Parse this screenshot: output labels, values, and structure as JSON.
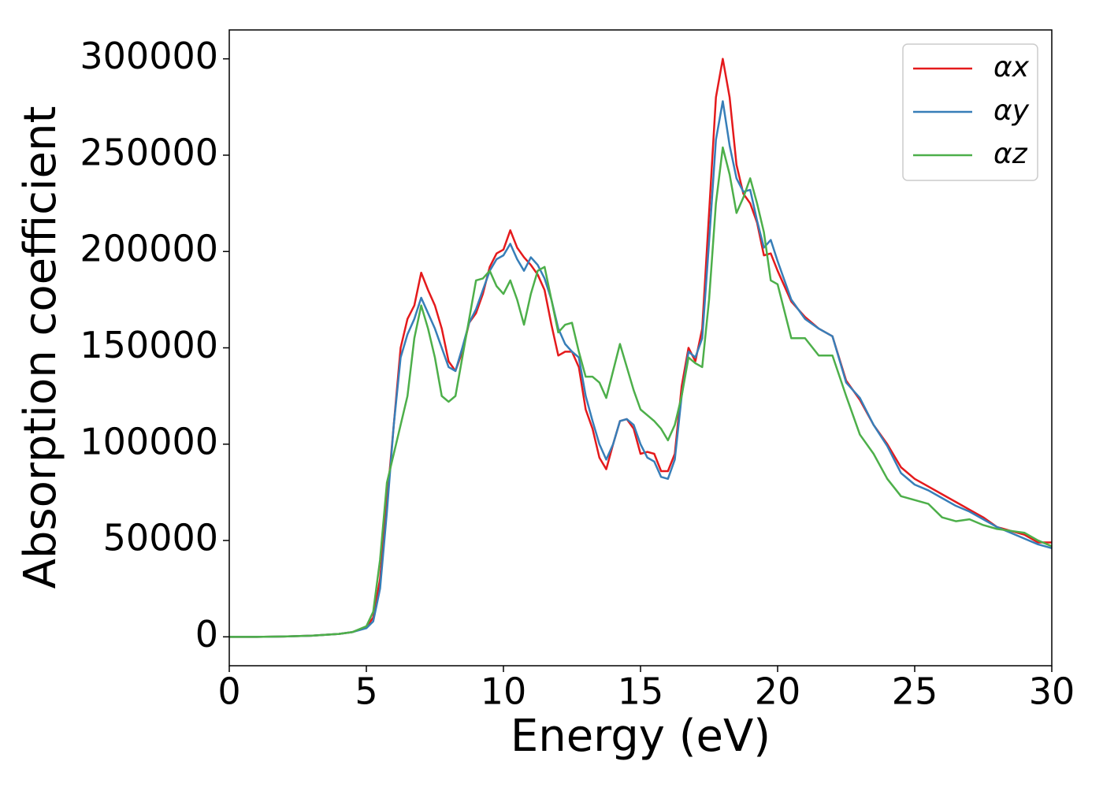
{
  "chart_data": {
    "type": "line",
    "xlabel": "Energy (eV)",
    "ylabel": "Absorption coefficient",
    "x": [
      0,
      1,
      2,
      3,
      4,
      4.5,
      5,
      5.25,
      5.5,
      5.75,
      6,
      6.25,
      6.5,
      6.75,
      7,
      7.25,
      7.5,
      7.75,
      8,
      8.25,
      8.5,
      8.75,
      9,
      9.25,
      9.5,
      9.75,
      10,
      10.25,
      10.5,
      10.75,
      11,
      11.25,
      11.5,
      11.75,
      12,
      12.25,
      12.5,
      12.75,
      13,
      13.25,
      13.5,
      13.75,
      14,
      14.25,
      14.5,
      14.75,
      15,
      15.25,
      15.5,
      15.75,
      16,
      16.25,
      16.5,
      16.75,
      17,
      17.25,
      17.5,
      17.75,
      18,
      18.25,
      18.5,
      18.75,
      19,
      19.25,
      19.5,
      19.75,
      20,
      20.5,
      21,
      21.5,
      22,
      22.5,
      23,
      23.5,
      24,
      24.5,
      25,
      25.5,
      26,
      26.5,
      27,
      27.5,
      28,
      28.5,
      29,
      29.5,
      30
    ],
    "series": [
      {
        "name": "αx",
        "color": "#e41a1c",
        "values": [
          0,
          0,
          200,
          600,
          1500,
          2500,
          5000,
          10000,
          30000,
          70000,
          110000,
          150000,
          165000,
          172000,
          189000,
          180000,
          172000,
          160000,
          143000,
          138000,
          148000,
          163000,
          168000,
          178000,
          192000,
          199000,
          201000,
          211000,
          202000,
          197000,
          193000,
          188000,
          180000,
          162000,
          146000,
          148000,
          148000,
          140000,
          118000,
          108000,
          93000,
          87000,
          100000,
          112000,
          113000,
          108000,
          95000,
          96000,
          95000,
          86000,
          86000,
          95000,
          130000,
          150000,
          143000,
          160000,
          220000,
          280000,
          300000,
          280000,
          245000,
          230000,
          225000,
          215000,
          198000,
          199000,
          190000,
          174000,
          166000,
          160000,
          156000,
          133000,
          123000,
          110000,
          100000,
          88000,
          82000,
          78000,
          74000,
          70000,
          66000,
          62000,
          57000,
          55000,
          53000,
          49000,
          49000
        ]
      },
      {
        "name": "αy",
        "color": "#377eb8",
        "values": [
          0,
          0,
          200,
          600,
          1500,
          2500,
          4500,
          8000,
          25000,
          65000,
          110000,
          145000,
          157000,
          165000,
          176000,
          168000,
          160000,
          150000,
          140000,
          138000,
          150000,
          163000,
          170000,
          180000,
          190000,
          196000,
          198000,
          204000,
          196000,
          190000,
          197000,
          193000,
          186000,
          175000,
          160000,
          152000,
          148000,
          145000,
          125000,
          112000,
          100000,
          92000,
          100000,
          112000,
          113000,
          110000,
          100000,
          93000,
          91000,
          83000,
          82000,
          92000,
          125000,
          148000,
          145000,
          155000,
          205000,
          258000,
          278000,
          255000,
          238000,
          231000,
          232000,
          216000,
          202000,
          206000,
          195000,
          175000,
          165000,
          160000,
          156000,
          132000,
          124000,
          110000,
          99000,
          85000,
          79000,
          76000,
          72000,
          68000,
          65000,
          61000,
          57000,
          54000,
          51000,
          48000,
          46000
        ]
      },
      {
        "name": "αz",
        "color": "#4daf4a",
        "values": [
          0,
          0,
          200,
          600,
          1500,
          2500,
          5500,
          13000,
          40000,
          80000,
          95000,
          110000,
          125000,
          155000,
          172000,
          160000,
          145000,
          125000,
          122000,
          125000,
          145000,
          165000,
          185000,
          186000,
          190000,
          182000,
          178000,
          185000,
          175000,
          162000,
          178000,
          190000,
          192000,
          175000,
          158000,
          162000,
          163000,
          148000,
          135000,
          135000,
          132000,
          124000,
          138000,
          152000,
          140000,
          128000,
          118000,
          115000,
          112000,
          108000,
          102000,
          110000,
          125000,
          145000,
          142000,
          140000,
          175000,
          225000,
          254000,
          240000,
          220000,
          228000,
          238000,
          225000,
          210000,
          185000,
          183000,
          155000,
          155000,
          146000,
          146000,
          125000,
          105000,
          95000,
          82000,
          73000,
          71000,
          69000,
          62000,
          60000,
          61000,
          58000,
          56000,
          55000,
          54000,
          50000,
          47000
        ]
      }
    ],
    "xlim": [
      0,
      30
    ],
    "ylim": [
      -15000,
      315000
    ],
    "xticks": [
      0,
      5,
      10,
      15,
      20,
      25,
      30
    ],
    "yticks": [
      0,
      50000,
      100000,
      150000,
      200000,
      250000,
      300000
    ],
    "grid": false,
    "legend": "upper right"
  }
}
